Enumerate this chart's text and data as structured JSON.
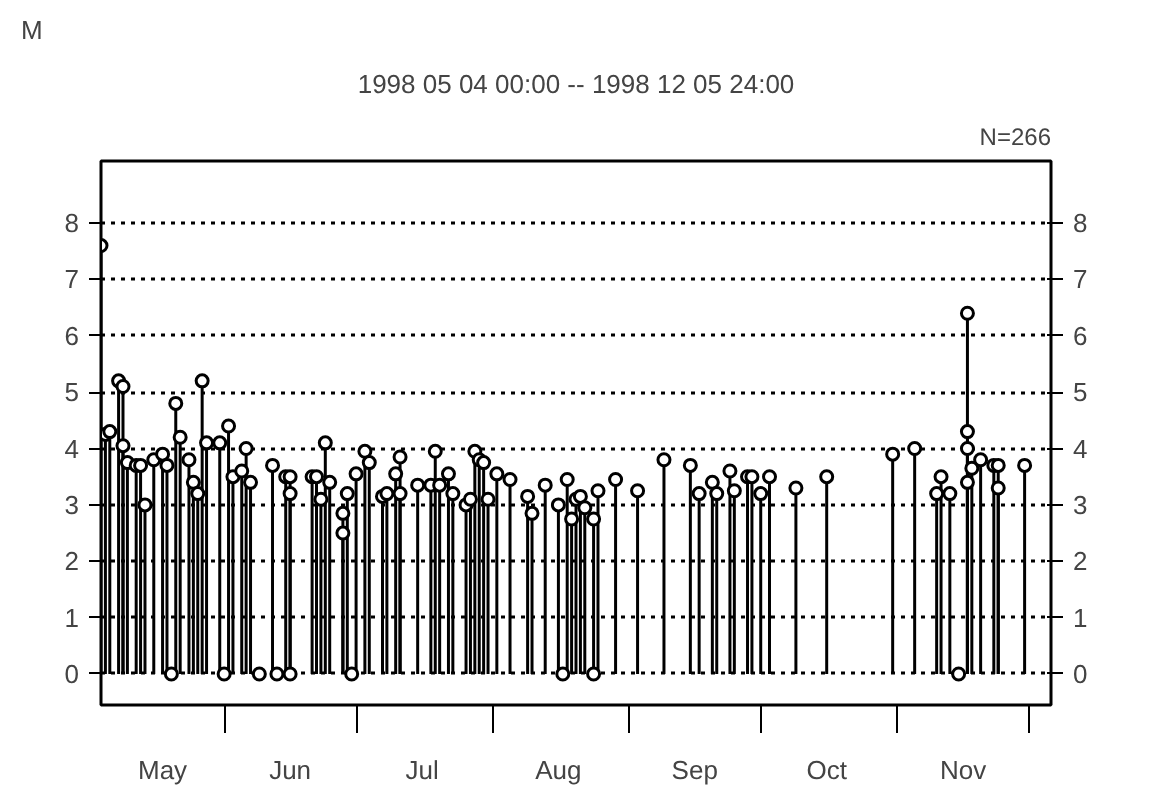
{
  "chart_data": {
    "type": "lollipop",
    "title": "1998 05 04 00:00 -- 1998 12 05 24:00",
    "ylabel": "M",
    "annotations": [
      "N=266"
    ],
    "x": [
      "1998-05-04",
      "1998-05-05",
      "1998-05-06",
      "1998-05-08",
      "1998-05-09",
      "1998-05-09",
      "1998-05-10",
      "1998-05-12",
      "1998-05-13",
      "1998-05-14",
      "1998-05-16",
      "1998-05-18",
      "1998-05-19",
      "1998-05-20",
      "1998-05-21",
      "1998-05-22",
      "1998-05-24",
      "1998-05-25",
      "1998-05-26",
      "1998-05-27",
      "1998-05-28",
      "1998-05-31",
      "1998-06-01",
      "1998-06-02",
      "1998-06-03",
      "1998-06-05",
      "1998-06-06",
      "1998-06-07",
      "1998-06-09",
      "1998-06-12",
      "1998-06-13",
      "1998-06-15",
      "1998-06-16",
      "1998-06-16",
      "1998-06-16",
      "1998-06-21",
      "1998-06-22",
      "1998-06-23",
      "1998-06-24",
      "1998-06-25",
      "1998-06-28",
      "1998-06-28",
      "1998-06-29",
      "1998-06-30",
      "1998-07-01",
      "1998-07-03",
      "1998-07-04",
      "1998-07-07",
      "1998-07-08",
      "1998-07-10",
      "1998-07-11",
      "1998-07-11",
      "1998-07-15",
      "1998-07-18",
      "1998-07-19",
      "1998-07-20",
      "1998-07-22",
      "1998-07-23",
      "1998-07-26",
      "1998-07-27",
      "1998-07-28",
      "1998-07-29",
      "1998-07-30",
      "1998-07-31",
      "1998-08-02",
      "1998-08-05",
      "1998-08-09",
      "1998-08-10",
      "1998-08-13",
      "1998-08-16",
      "1998-08-17",
      "1998-08-18",
      "1998-08-19",
      "1998-08-20",
      "1998-08-21",
      "1998-08-22",
      "1998-08-24",
      "1998-08-24",
      "1998-08-25",
      "1998-08-29",
      "1998-09-03",
      "1998-09-09",
      "1998-09-15",
      "1998-09-17",
      "1998-09-20",
      "1998-09-21",
      "1998-09-24",
      "1998-09-25",
      "1998-09-28",
      "1998-09-29",
      "1998-10-01",
      "1998-10-03",
      "1998-10-09",
      "1998-10-16",
      "1998-10-31",
      "1998-11-05",
      "1998-11-10",
      "1998-11-11",
      "1998-11-13",
      "1998-11-15",
      "1998-11-17",
      "1998-11-17",
      "1998-11-17",
      "1998-11-17",
      "1998-11-18",
      "1998-11-20",
      "1998-11-23",
      "1998-11-24",
      "1998-11-24",
      "1998-11-30"
    ],
    "values": [
      7.6,
      4.25,
      4.3,
      5.2,
      5.1,
      4.05,
      3.75,
      3.7,
      3.7,
      3.0,
      3.8,
      3.9,
      3.7,
      0,
      4.8,
      4.2,
      3.8,
      3.4,
      3.2,
      5.2,
      4.1,
      4.1,
      0,
      4.4,
      3.5,
      3.6,
      4.0,
      3.4,
      0,
      3.7,
      0,
      3.5,
      3.5,
      3.2,
      0,
      3.5,
      3.5,
      3.1,
      4.1,
      3.4,
      2.85,
      2.5,
      3.2,
      0,
      3.55,
      3.95,
      3.75,
      3.15,
      3.2,
      3.55,
      3.85,
      3.2,
      3.35,
      3.35,
      3.95,
      3.35,
      3.55,
      3.2,
      3.0,
      3.1,
      3.95,
      3.8,
      3.75,
      3.1,
      3.55,
      3.45,
      3.15,
      2.85,
      3.35,
      3.0,
      0,
      3.45,
      2.75,
      3.1,
      3.15,
      2.95,
      0,
      2.75,
      3.25,
      3.45,
      3.25,
      3.8,
      3.7,
      3.2,
      3.4,
      3.2,
      3.6,
      3.25,
      3.5,
      3.5,
      3.2,
      3.5,
      3.3,
      3.5,
      3.9,
      4.0,
      3.2,
      3.5,
      3.2,
      0,
      6.4,
      4.3,
      4.0,
      3.4,
      3.65,
      3.8,
      3.7,
      3.3,
      3.7,
      3.7
    ],
    "color": "#000000",
    "marker": "circle",
    "xlim": [
      "1998-05-04",
      "1998-12-06"
    ],
    "xticks": [
      {
        "value": "1998-06-01",
        "label": null
      },
      {
        "value": "1998-07-01",
        "label": null
      },
      {
        "value": "1998-08-01",
        "label": null
      },
      {
        "value": "1998-09-01",
        "label": null
      },
      {
        "value": "1998-10-01",
        "label": null
      },
      {
        "value": "1998-11-01",
        "label": null
      },
      {
        "value": "1998-12-01",
        "label": null
      },
      {
        "value": "1998-05-18",
        "label": "May"
      },
      {
        "value": "1998-06-16",
        "label": "Jun"
      },
      {
        "value": "1998-07-16",
        "label": "Jul"
      },
      {
        "value": "1998-08-16",
        "label": "Aug"
      },
      {
        "value": "1998-09-16",
        "label": "Sep"
      },
      {
        "value": "1998-10-16",
        "label": "Oct"
      },
      {
        "value": "1998-11-16",
        "label": "Nov"
      }
    ],
    "ylim": [
      -0.55,
      9.1
    ],
    "yticks": [
      0,
      1,
      2,
      3,
      4,
      5,
      6,
      7,
      8
    ],
    "y2lim": [
      -0.55,
      9.1
    ],
    "y2ticks": [
      0,
      1,
      2,
      3,
      4,
      5,
      6,
      7,
      8
    ],
    "grid": "y",
    "line_style": "dotted"
  }
}
